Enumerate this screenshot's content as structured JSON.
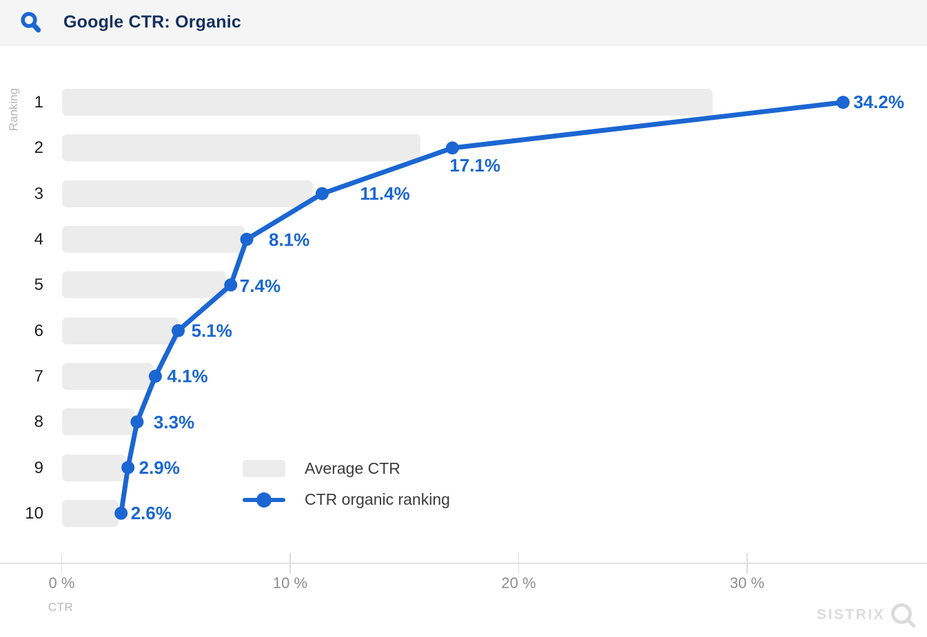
{
  "header": {
    "title": "Google CTR: Organic",
    "icon": "search-icon",
    "background": "#f5f5f5",
    "title_color": "#14315d"
  },
  "chart_data": {
    "type": "bar+line",
    "orientation": "horizontal",
    "title": "Google CTR: Organic",
    "xlabel": "CTR",
    "ylabel": "Ranking",
    "categories": [
      "1",
      "2",
      "3",
      "4",
      "5",
      "6",
      "7",
      "8",
      "9",
      "10"
    ],
    "xlim": [
      0,
      37.9
    ],
    "grid": false,
    "x_ticks": [
      {
        "value": 0,
        "label": "0 %"
      },
      {
        "value": 10,
        "label": "10 %"
      },
      {
        "value": 20,
        "label": "20 %"
      },
      {
        "value": 30,
        "label": "30 %"
      }
    ],
    "series": [
      {
        "name": "Average CTR",
        "type": "bar",
        "color": "#ececec",
        "values": [
          28.5,
          15.7,
          11.0,
          8.0,
          7.2,
          5.1,
          4.0,
          3.2,
          2.8,
          2.5
        ]
      },
      {
        "name": "CTR organic ranking",
        "type": "line",
        "color": "#1b66d2",
        "values": [
          34.2,
          17.1,
          11.4,
          8.1,
          7.4,
          5.1,
          4.1,
          3.3,
          2.9,
          2.6
        ],
        "point_labels": [
          "34.2%",
          "17.1%",
          "11.4%",
          "8.1%",
          "7.4%",
          "5.1%",
          "4.1%",
          "3.3%",
          "2.9%",
          "2.6%"
        ]
      }
    ],
    "legend_position": "inside-bottom-left"
  },
  "branding": {
    "logo_text": "SISTRIX",
    "logo_icon": "magnifier-icon",
    "color": "#dbdbdb"
  },
  "colors": {
    "accent_blue": "#1b66d2",
    "bar_gray": "#ececec",
    "axis_gray": "#dcdcdc",
    "tick_label_gray": "#8e8e8e",
    "muted_label_gray": "#b4b4b4"
  }
}
